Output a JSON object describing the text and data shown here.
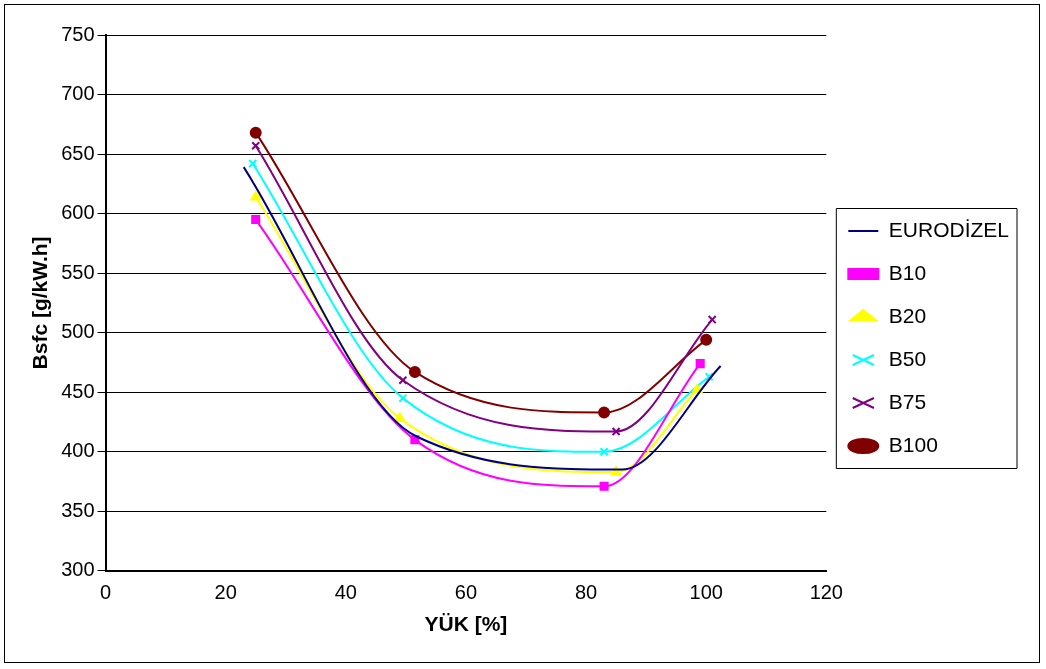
{
  "chart_data": {
    "type": "line",
    "xlabel": "YÜK [%]",
    "ylabel": "Bsfc [g/kW.h]",
    "xlim": [
      0,
      120
    ],
    "xticks": [
      0,
      20,
      40,
      60,
      80,
      100,
      120
    ],
    "ylim": [
      300,
      750
    ],
    "yticks": [
      300,
      350,
      400,
      450,
      500,
      550,
      600,
      650,
      700,
      750
    ],
    "grid": "y",
    "legend": "right",
    "series": [
      {
        "name": "EURODİZEL",
        "color": "#000080",
        "marker": "none",
        "x": [
          23,
          51.7,
          86,
          102.4
        ],
        "values": [
          639,
          413,
          385,
          472
        ]
      },
      {
        "name": "B10",
        "color": "#ff00ff",
        "marker": "square",
        "x": [
          25,
          51.5,
          83,
          99
        ],
        "values": [
          595,
          410,
          371,
          474
        ]
      },
      {
        "name": "B20",
        "color": "#ffff00",
        "marker": "triangle",
        "x": [
          25,
          49,
          85,
          98.5
        ],
        "values": [
          614,
          428,
          383,
          452
        ]
      },
      {
        "name": "B50",
        "color": "#00ffff",
        "marker": "cross",
        "x": [
          24.5,
          49.5,
          83,
          100.5
        ],
        "values": [
          642,
          445,
          400,
          463
        ]
      },
      {
        "name": "B75",
        "color": "#800080",
        "marker": "cross",
        "x": [
          25,
          49.5,
          85,
          101
        ],
        "values": [
          657,
          460,
          417,
          511
        ]
      },
      {
        "name": "B100",
        "color": "#800000",
        "marker": "circle",
        "x": [
          25,
          51.5,
          83,
          100
        ],
        "values": [
          668,
          467,
          433,
          494
        ]
      }
    ]
  }
}
